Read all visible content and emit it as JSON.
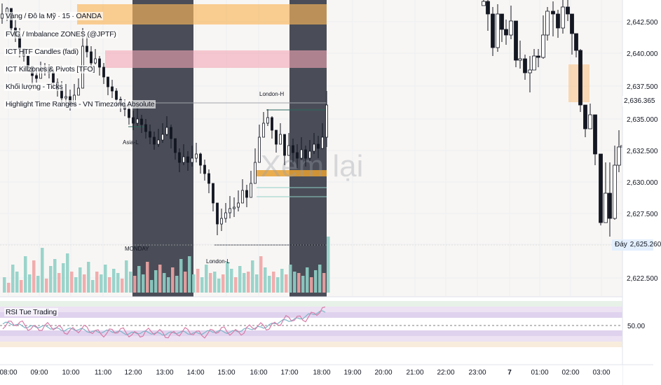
{
  "indicators": {
    "symbol_line": "Vàng / Đô la Mỹ · 15 · OANDA",
    "items": [
      "FVG / Imbalance ZONES (@JPTF)",
      "ICT HTF Candles (fadi)",
      "ICT Killzones & Pivots [TFO]",
      "Khối lượng - Ticks",
      "Highlight Time Ranges - VN Timezone Absolute"
    ]
  },
  "chart_labels": {
    "london_h": "London-H",
    "london_l": "London-L",
    "asia": "Asia-L",
    "monday": "MONDAY",
    "watermark": "Xem lại"
  },
  "price_axis": {
    "ticks": [
      "2,642.500",
      "2,640.000",
      "2,637.500",
      "2,635.000",
      "2,632.500",
      "2,630.000",
      "2,627.500",
      "2,625.260",
      "2,622.500"
    ],
    "current_price": "2,636.365",
    "low_label": "Đáy",
    "low_price": "2,625.260"
  },
  "rsi": {
    "title": "RSI Tue Trading",
    "mid_label": "50.00"
  },
  "time_axis": {
    "ticks": [
      "08:00",
      "09:00",
      "10:00",
      "11:00",
      "12:00",
      "13:00",
      "14:00",
      "15:00",
      "16:00",
      "17:00",
      "18:00",
      "19:00",
      "20:00",
      "21:00",
      "22:00",
      "23:00",
      "7",
      "01:00",
      "02:00",
      "03:00"
    ]
  },
  "colors": {
    "bull_candle": "#ffffff",
    "bear_candle": "#131722",
    "session_shade": "#4a4d57",
    "asia_zone": "#f9b55b",
    "pink_zone": "#f4a7b5",
    "vol_up": "#8fd0c6",
    "vol_down": "#f0a5a5",
    "rsi_band": "#d9ccec",
    "rsi_line": "#d77ca8",
    "rsi_ma": "#7ab6c8"
  }
}
